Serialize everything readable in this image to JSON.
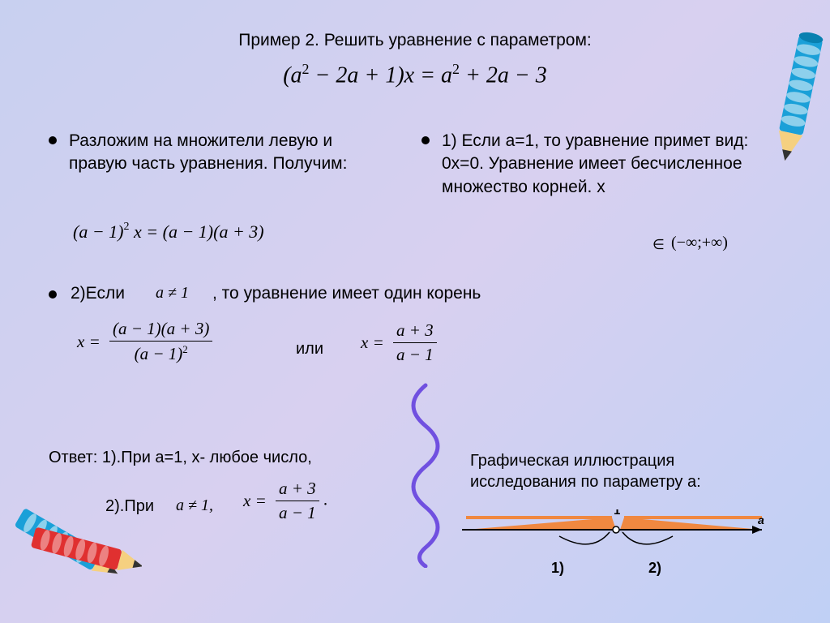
{
  "title": "Пример 2. Решить уравнение с параметром:",
  "main_equation_html": "(<i>a</i><sup>2</sup> − 2<i>a</i> + 1)<i>x</i> = <i>a</i><sup>2</sup> + 2<i>a</i> − 3",
  "left_para": "Разложим на множители левую и правую часть уравнения. Получим:",
  "eq1_html": "(<i>a</i> − 1)<sup>2</sup> <i>x</i> = (<i>a</i> − 1)(<i>a</i> + 3)",
  "right_para": "1) Если а=1, то уравнение примет вид: 0х=0. Уравнение имеет бесчисленное множество корней. х",
  "interval": "(−∞;+∞)",
  "mid_prefix": "2)Если",
  "a_ne_1": "a ≠ 1",
  "mid_suffix": ", то уравнение  имеет один корень",
  "frac1_num": "(a − 1)(a + 3)",
  "frac1_den_html": "(<i>a</i> − 1)<sup>2</sup>",
  "or_word": "или",
  "frac2_num": "a + 3",
  "frac2_den": "a − 1",
  "answer1": "Ответ: 1).При а=1, х- любое число,",
  "ans2": "2).При",
  "a_ne_1b": "a ≠ 1,",
  "frac3_num": "a + 3",
  "frac3_den": "a − 1",
  "graf_label": "Графическая иллюстрация исследования по параметру а:",
  "diagram": {
    "tick_label": "1",
    "axis_label": "a",
    "region1": "1)",
    "region2": "2)",
    "fill_color": "#f08840",
    "line_color": "#000000"
  },
  "colors": {
    "pencil_blue": "#1aa0d8",
    "pencil_spiral": "#4050d8",
    "pencil_tip": "#f5d080",
    "squiggle": "#7050e0"
  }
}
